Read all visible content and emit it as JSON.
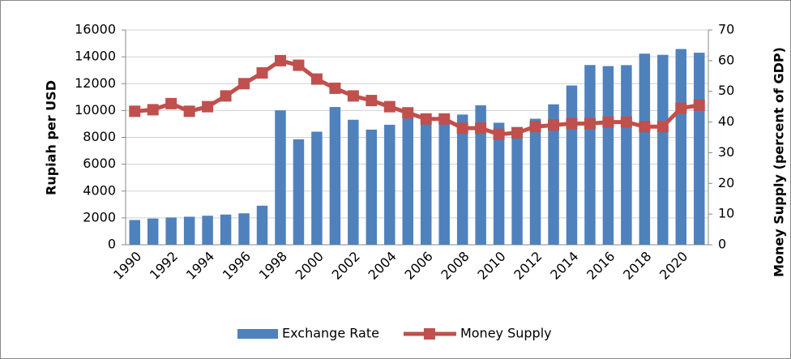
{
  "chart_data": {
    "type": "bar-line",
    "categories": [
      "1990",
      null,
      "1992",
      null,
      "1994",
      null,
      "1996",
      null,
      "1998",
      null,
      "2000",
      null,
      "2002",
      null,
      "2004",
      null,
      "2006",
      null,
      "2008",
      null,
      "2010",
      null,
      "2012",
      null,
      "2014",
      null,
      "2016",
      null,
      "2018",
      null,
      "2020",
      null
    ],
    "series": [
      {
        "name": "Exchange Rate",
        "type": "bar",
        "color": "#4f81bd",
        "values": [
          1843,
          1950,
          2030,
          2087,
          2161,
          2249,
          2342,
          2909,
          10014,
          7855,
          8422,
          10261,
          9311,
          8577,
          8939,
          9705,
          9159,
          9141,
          9699,
          10390,
          9090,
          8770,
          9387,
          10461,
          11865,
          13389,
          13308,
          13381,
          14237,
          14148,
          14582,
          14308
        ]
      },
      {
        "name": "Money Supply",
        "type": "line",
        "axis": "y2",
        "color": "#c0504d",
        "values": [
          43.5,
          44,
          46,
          43.5,
          45,
          48.5,
          52.5,
          56,
          60,
          58.5,
          54,
          51,
          48.5,
          47,
          45,
          43,
          41,
          41,
          38,
          38,
          36,
          36.5,
          38.5,
          39,
          39.5,
          39.5,
          40,
          40,
          38.5,
          38.5,
          44.5,
          45.5
        ]
      }
    ],
    "y_label": "Rupiah per USD",
    "y2_label": "Money Supply (percent of GDP)",
    "ylim": [
      0,
      16000
    ],
    "yticks": [
      0,
      2000,
      4000,
      6000,
      8000,
      10000,
      12000,
      14000,
      16000
    ],
    "y2lim": [
      0,
      70
    ],
    "y2ticks": [
      0,
      10,
      20,
      30,
      40,
      50,
      60,
      70
    ],
    "grid": true,
    "legend": "bottom"
  }
}
